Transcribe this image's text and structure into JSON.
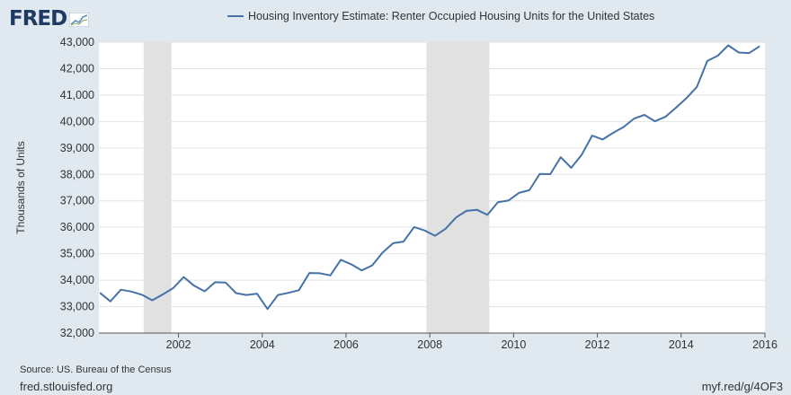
{
  "header": {
    "logo_text": "FRED",
    "logo_icon": "chart-line-icon"
  },
  "chart_data": {
    "type": "line",
    "title": "Housing Inventory Estimate: Renter Occupied Housing Units for the United States",
    "ylabel": "Thousands of Units",
    "xlabel": "",
    "xlim": [
      2000.1,
      2016.0
    ],
    "ylim": [
      32000,
      43000
    ],
    "grid": true,
    "yticks": [
      32000,
      33000,
      34000,
      35000,
      36000,
      37000,
      38000,
      39000,
      40000,
      41000,
      42000,
      43000
    ],
    "ytick_labels": [
      "32,000",
      "33,000",
      "34,000",
      "35,000",
      "36,000",
      "37,000",
      "38,000",
      "39,000",
      "40,000",
      "41,000",
      "42,000",
      "43,000"
    ],
    "xticks": [
      2002,
      2004,
      2006,
      2008,
      2010,
      2012,
      2014,
      2016
    ],
    "xtick_labels": [
      "2002",
      "2004",
      "2006",
      "2008",
      "2010",
      "2012",
      "2014",
      "2016"
    ],
    "recessions": [
      [
        2001.17,
        2001.83
      ],
      [
        2007.92,
        2009.42
      ]
    ],
    "series": [
      {
        "name": "Housing Inventory Estimate: Renter Occupied Housing Units for the United States",
        "color": "#4572a7",
        "x": [
          2000.125,
          2000.375,
          2000.625,
          2000.875,
          2001.125,
          2001.375,
          2001.625,
          2001.875,
          2002.125,
          2002.375,
          2002.625,
          2002.875,
          2003.125,
          2003.375,
          2003.625,
          2003.875,
          2004.125,
          2004.375,
          2004.625,
          2004.875,
          2005.125,
          2005.375,
          2005.625,
          2005.875,
          2006.125,
          2006.375,
          2006.625,
          2006.875,
          2007.125,
          2007.375,
          2007.625,
          2007.875,
          2008.125,
          2008.375,
          2008.625,
          2008.875,
          2009.125,
          2009.375,
          2009.625,
          2009.875,
          2010.125,
          2010.375,
          2010.625,
          2010.875,
          2011.125,
          2011.375,
          2011.625,
          2011.875,
          2012.125,
          2012.375,
          2012.625,
          2012.875,
          2013.125,
          2013.375,
          2013.625,
          2013.875,
          2014.125,
          2014.375,
          2014.625,
          2014.875,
          2015.125,
          2015.375,
          2015.625,
          2015.875
        ],
        "values": [
          33520,
          33200,
          33640,
          33570,
          33450,
          33240,
          33460,
          33700,
          34120,
          33790,
          33580,
          33920,
          33910,
          33510,
          33440,
          33490,
          32910,
          33440,
          33520,
          33620,
          34270,
          34260,
          34180,
          34770,
          34600,
          34370,
          34560,
          35050,
          35400,
          35460,
          36010,
          35880,
          35680,
          35940,
          36370,
          36620,
          36660,
          36470,
          36950,
          37010,
          37300,
          37400,
          38020,
          38010,
          38650,
          38250,
          38740,
          39470,
          39320,
          39570,
          39790,
          40110,
          40250,
          40010,
          40180,
          40520,
          40880,
          41310,
          42290,
          42490,
          42880,
          42610,
          42590,
          42850
        ]
      }
    ]
  },
  "footer": {
    "source": "Source: US. Bureau of the Census",
    "site": "fred.stlouisfed.org",
    "shortlink": "myf.red/g/4OF3"
  }
}
